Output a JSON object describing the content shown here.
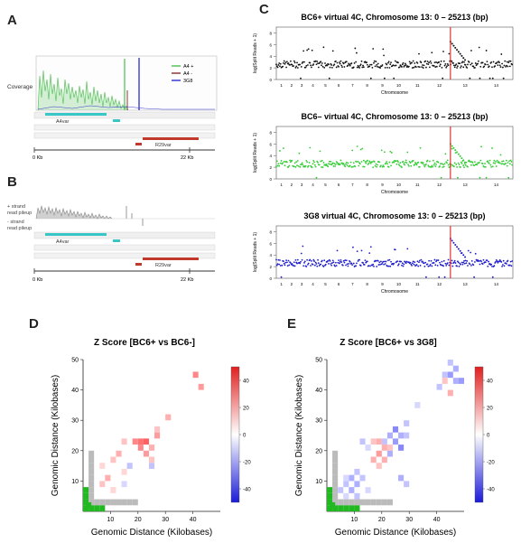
{
  "panels": {
    "A": "A",
    "B": "B",
    "C": "C",
    "D": "D",
    "E": "E"
  },
  "panel_a": {
    "coverage_label": "Coverage",
    "legend": [
      {
        "label": "A4 +",
        "color": "#56c45a"
      },
      {
        "label": "A4 -",
        "color": "#8c3b3b"
      },
      {
        "label": "3G8",
        "color": "#3a3ad0"
      }
    ],
    "gene_a4": "A4var",
    "gene_r29": "R29var",
    "scale_start": "0 Kb",
    "scale_end": "22 Kb"
  },
  "panel_b": {
    "plus_label_1": "+ strand",
    "plus_label_2": "read pileup",
    "minus_label_1": "- strand",
    "minus_label_2": "read pileup",
    "gene_a4": "A4var",
    "gene_r29": "R29var",
    "scale_start": "0 Kb",
    "scale_end": "22 Kb"
  },
  "chart_data": [
    {
      "type": "scatter",
      "title": "BC6+ virtual 4C, Chromosome 13: 0 – 25213 (bp)",
      "xlabel": "Chromosome",
      "ylabel": "log(Split Reads + 1)",
      "x_ticks": [
        "1",
        "2",
        "3",
        "4",
        "5",
        "6",
        "7",
        "8",
        "9",
        "10",
        "11",
        "12",
        "13",
        "14"
      ],
      "y_ticks": [
        "0",
        "2",
        "4",
        "6",
        "8"
      ],
      "ylim": [
        0,
        9
      ],
      "color": "#111111",
      "baseline": 2.6,
      "peak_chromosome": 13,
      "peak_value": 6.5
    },
    {
      "type": "scatter",
      "title": "BC6– virtual 4C, Chromosome 13: 0 – 25213 (bp)",
      "xlabel": "Chromosome",
      "ylabel": "log(Split Reads + 1)",
      "x_ticks": [
        "1",
        "2",
        "3",
        "4",
        "5",
        "6",
        "7",
        "8",
        "9",
        "10",
        "11",
        "12",
        "13",
        "14"
      ],
      "y_ticks": [
        "0",
        "2",
        "4",
        "6",
        "8"
      ],
      "ylim": [
        0,
        9
      ],
      "color": "#33cc33",
      "baseline": 2.6,
      "peak_chromosome": 13,
      "peak_value": 6.0
    },
    {
      "type": "scatter",
      "title": "3G8 virtual 4C, Chromosome 13: 0 – 25213 (bp)",
      "xlabel": "Chromosome",
      "ylabel": "log(Split Reads + 1)",
      "x_ticks": [
        "1",
        "2",
        "3",
        "4",
        "5",
        "6",
        "7",
        "8",
        "9",
        "10",
        "11",
        "12",
        "13",
        "14"
      ],
      "y_ticks": [
        "0",
        "2",
        "4",
        "6",
        "8"
      ],
      "ylim": [
        0,
        9
      ],
      "color": "#1c1ccc",
      "baseline": 2.6,
      "peak_chromosome": 13,
      "peak_value": 6.8
    },
    {
      "type": "heatmap",
      "title": "Z Score [BC6+ vs BC6-]",
      "xlabel": "Genomic Distance (Kilobases)",
      "ylabel": "Genomic Distance (Kilobases)",
      "x_ticks": [
        "10",
        "20",
        "30",
        "40"
      ],
      "y_ticks": [
        "10",
        "20",
        "30",
        "40",
        "50"
      ],
      "xlim": [
        0,
        50
      ],
      "ylim": [
        0,
        50
      ],
      "colorbar_ticks": [
        "40",
        "20",
        "0",
        "-20",
        "-40"
      ],
      "colorbar_range": [
        -50,
        50
      ],
      "cells": [
        [
          40,
          44,
          30
        ],
        [
          42,
          40,
          25
        ],
        [
          30,
          30,
          20
        ],
        [
          26,
          24,
          25
        ],
        [
          20,
          22,
          35
        ],
        [
          22,
          22,
          40
        ],
        [
          18,
          22,
          30
        ],
        [
          24,
          20,
          20
        ],
        [
          20,
          20,
          30
        ],
        [
          22,
          18,
          25
        ],
        [
          24,
          16,
          15
        ],
        [
          14,
          22,
          15
        ],
        [
          12,
          18,
          20
        ],
        [
          10,
          16,
          15
        ],
        [
          16,
          14,
          -15
        ],
        [
          14,
          12,
          10
        ],
        [
          8,
          10,
          20
        ],
        [
          6,
          8,
          15
        ],
        [
          10,
          6,
          10
        ],
        [
          14,
          8,
          -10
        ],
        [
          24,
          14,
          -15
        ],
        [
          26,
          26,
          15
        ],
        [
          6,
          14,
          10
        ]
      ],
      "gray_cells": [
        [
          2,
          2
        ],
        [
          2,
          4
        ],
        [
          2,
          6
        ],
        [
          2,
          8
        ],
        [
          2,
          10
        ],
        [
          2,
          12
        ],
        [
          2,
          14
        ],
        [
          2,
          16
        ],
        [
          2,
          18
        ],
        [
          4,
          2
        ],
        [
          6,
          2
        ],
        [
          8,
          2
        ],
        [
          10,
          2
        ],
        [
          12,
          2
        ],
        [
          14,
          2
        ],
        [
          16,
          2
        ],
        [
          18,
          2
        ]
      ],
      "diag_cells": [
        [
          0,
          0
        ],
        [
          0,
          2
        ],
        [
          0,
          4
        ],
        [
          0,
          6
        ],
        [
          1,
          1
        ],
        [
          2,
          0
        ],
        [
          4,
          0
        ],
        [
          6,
          0
        ]
      ]
    },
    {
      "type": "heatmap",
      "title": "Z Score [BC6+ vs 3G8]",
      "xlabel": "Genomic Distance (Kilobases)",
      "ylabel": "Genomic Distance (Kilobases)",
      "x_ticks": [
        "10",
        "20",
        "30",
        "40"
      ],
      "y_ticks": [
        "10",
        "20",
        "30",
        "40",
        "50"
      ],
      "xlim": [
        0,
        50
      ],
      "ylim": [
        0,
        50
      ],
      "colorbar_ticks": [
        "40",
        "20",
        "0",
        "-20",
        "-40"
      ],
      "colorbar_range": [
        -50,
        50
      ],
      "cells": [
        [
          44,
          48,
          -15
        ],
        [
          46,
          46,
          -20
        ],
        [
          42,
          44,
          -15
        ],
        [
          44,
          44,
          -25
        ],
        [
          46,
          42,
          -20
        ],
        [
          48,
          42,
          -25
        ],
        [
          42,
          42,
          15
        ],
        [
          40,
          40,
          -15
        ],
        [
          44,
          38,
          20
        ],
        [
          32,
          34,
          -10
        ],
        [
          28,
          28,
          -15
        ],
        [
          24,
          26,
          -30
        ],
        [
          26,
          24,
          -20
        ],
        [
          28,
          24,
          -15
        ],
        [
          22,
          24,
          -20
        ],
        [
          24,
          22,
          -25
        ],
        [
          20,
          22,
          -15
        ],
        [
          26,
          20,
          -30
        ],
        [
          22,
          20,
          15
        ],
        [
          18,
          22,
          20
        ],
        [
          20,
          20,
          20
        ],
        [
          16,
          22,
          15
        ],
        [
          22,
          18,
          -20
        ],
        [
          18,
          18,
          25
        ],
        [
          20,
          16,
          20
        ],
        [
          18,
          14,
          15
        ],
        [
          16,
          16,
          20
        ],
        [
          14,
          20,
          -10
        ],
        [
          12,
          22,
          -15
        ],
        [
          10,
          12,
          -15
        ],
        [
          8,
          10,
          -20
        ],
        [
          6,
          8,
          -15
        ],
        [
          8,
          6,
          -20
        ],
        [
          6,
          10,
          -10
        ],
        [
          10,
          8,
          -20
        ],
        [
          12,
          10,
          -15
        ],
        [
          26,
          10,
          -20
        ],
        [
          28,
          8,
          -15
        ],
        [
          4,
          6,
          -15
        ],
        [
          6,
          4,
          -10
        ],
        [
          10,
          4,
          -15
        ],
        [
          14,
          6,
          -10
        ]
      ],
      "gray_cells": [
        [
          2,
          2
        ],
        [
          2,
          4
        ],
        [
          2,
          6
        ],
        [
          2,
          8
        ],
        [
          2,
          10
        ],
        [
          2,
          12
        ],
        [
          2,
          14
        ],
        [
          2,
          16
        ],
        [
          2,
          18
        ],
        [
          4,
          2
        ],
        [
          6,
          2
        ],
        [
          8,
          2
        ],
        [
          10,
          2
        ],
        [
          12,
          2
        ],
        [
          14,
          2
        ],
        [
          16,
          2
        ],
        [
          18,
          2
        ],
        [
          20,
          2
        ],
        [
          22,
          2
        ]
      ],
      "diag_cells": [
        [
          0,
          0
        ],
        [
          0,
          2
        ],
        [
          0,
          4
        ],
        [
          0,
          6
        ],
        [
          1,
          1
        ],
        [
          2,
          0
        ],
        [
          4,
          0
        ],
        [
          6,
          0
        ],
        [
          8,
          0
        ],
        [
          10,
          0
        ]
      ]
    }
  ]
}
